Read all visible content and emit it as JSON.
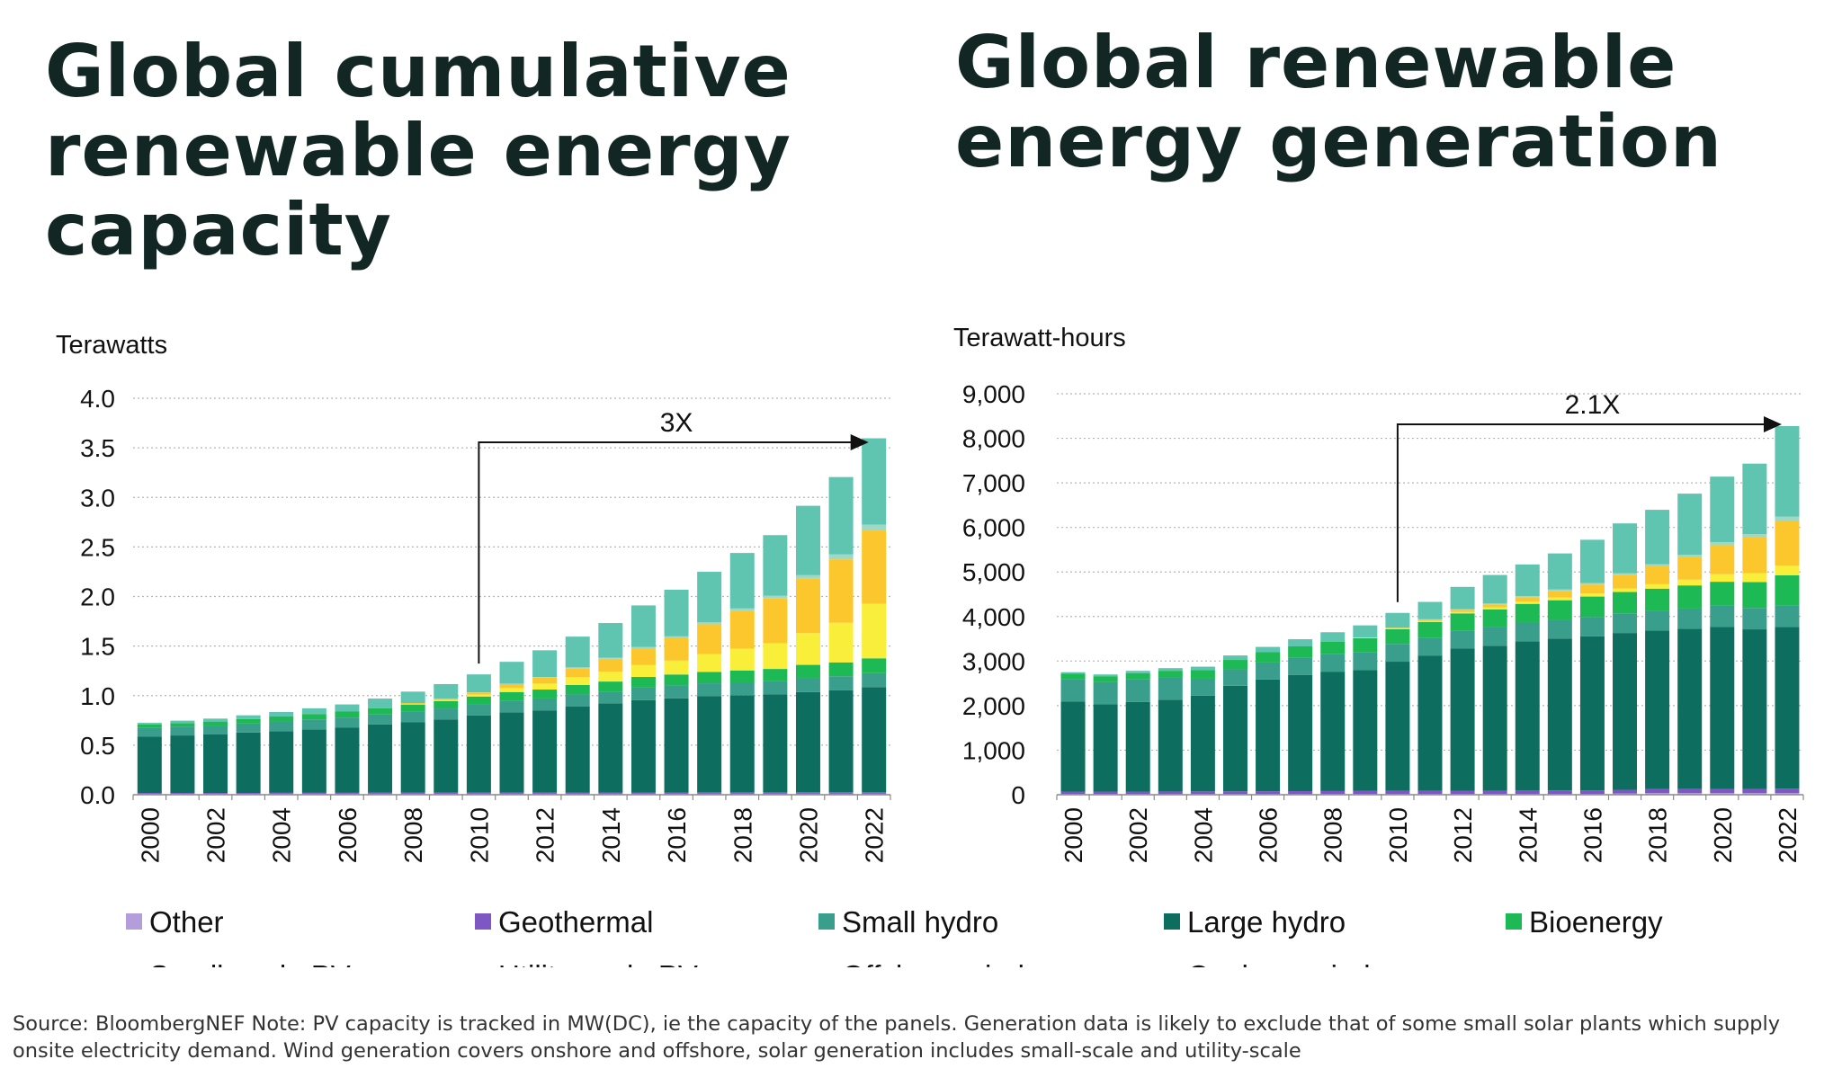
{
  "titles": {
    "left": "Global cumulative renewable energy capacity",
    "right": "Global renewable energy generation"
  },
  "source": "Source: BloombergNEF Note: PV capacity is tracked in MW(DC), ie the capacity of the panels. Generation data is likely to exclude that of some small solar plants which supply onsite electricity demand. Wind generation covers onshore and offshore, solar generation includes small-scale and utility-scale",
  "legend": [
    {
      "name": "Other",
      "color": "#b39ddb"
    },
    {
      "name": "Geothermal",
      "color": "#7e57c2"
    },
    {
      "name": "Small hydro",
      "color": "#3a9e8c"
    },
    {
      "name": "Large hydro",
      "color": "#0d6e5f"
    },
    {
      "name": "Bioenergy",
      "color": "#1db954"
    },
    {
      "name": "Small-scale PV",
      "color": "#f9ef3b"
    },
    {
      "name": "Utility-scale PV",
      "color": "#fcc72c"
    },
    {
      "name": "Offshore wind",
      "color": "#9ed9c8"
    },
    {
      "name": "Onshore wind",
      "color": "#5fc4b0"
    }
  ],
  "chart_data": [
    {
      "type": "bar",
      "stacked": true,
      "ylabel": "Terawatts",
      "ylim": [
        0,
        4
      ],
      "yticks": [
        "0.0",
        "0.5",
        "1.0",
        "1.5",
        "2.0",
        "2.5",
        "3.0",
        "3.5",
        "4.0"
      ],
      "categories": [
        "2000",
        "2001",
        "2002",
        "2003",
        "2004",
        "2005",
        "2006",
        "2007",
        "2008",
        "2009",
        "2010",
        "2011",
        "2012",
        "2013",
        "2014",
        "2015",
        "2016",
        "2017",
        "2018",
        "2019",
        "2020",
        "2021",
        "2022"
      ],
      "x_tick_labels": [
        "2000",
        "2002",
        "2004",
        "2006",
        "2008",
        "2010",
        "2012",
        "2014",
        "2016",
        "2018",
        "2020",
        "2022"
      ],
      "annotation": {
        "text": "3X",
        "from": "2010",
        "to": "2022"
      },
      "series": [
        {
          "name": "Other",
          "values": [
            0.01,
            0.01,
            0.01,
            0.01,
            0.01,
            0.01,
            0.01,
            0.01,
            0.01,
            0.01,
            0.01,
            0.01,
            0.01,
            0.01,
            0.01,
            0.01,
            0.01,
            0.01,
            0.01,
            0.01,
            0.01,
            0.01,
            0.01
          ]
        },
        {
          "name": "Geothermal",
          "values": [
            0.008,
            0.008,
            0.008,
            0.008,
            0.009,
            0.009,
            0.009,
            0.01,
            0.01,
            0.01,
            0.011,
            0.011,
            0.011,
            0.012,
            0.012,
            0.013,
            0.013,
            0.014,
            0.014,
            0.014,
            0.015,
            0.015,
            0.016
          ]
        },
        {
          "name": "Large hydro",
          "values": [
            0.57,
            0.58,
            0.59,
            0.61,
            0.62,
            0.64,
            0.66,
            0.69,
            0.71,
            0.74,
            0.78,
            0.81,
            0.83,
            0.87,
            0.9,
            0.93,
            0.95,
            0.97,
            0.98,
            0.99,
            1.01,
            1.03,
            1.06
          ]
        },
        {
          "name": "Small hydro",
          "values": [
            0.09,
            0.09,
            0.09,
            0.09,
            0.1,
            0.1,
            0.1,
            0.1,
            0.11,
            0.11,
            0.11,
            0.12,
            0.12,
            0.12,
            0.12,
            0.13,
            0.13,
            0.13,
            0.13,
            0.13,
            0.14,
            0.14,
            0.14
          ]
        },
        {
          "name": "Bioenergy",
          "values": [
            0.03,
            0.035,
            0.04,
            0.045,
            0.05,
            0.055,
            0.06,
            0.065,
            0.07,
            0.075,
            0.08,
            0.085,
            0.09,
            0.095,
            0.1,
            0.105,
            0.11,
            0.115,
            0.12,
            0.125,
            0.135,
            0.14,
            0.15
          ]
        },
        {
          "name": "Small-scale PV",
          "values": [
            0,
            0,
            0,
            0,
            0,
            0,
            0,
            0,
            0.005,
            0.01,
            0.02,
            0.04,
            0.06,
            0.08,
            0.1,
            0.12,
            0.14,
            0.18,
            0.22,
            0.26,
            0.32,
            0.4,
            0.55
          ]
        },
        {
          "name": "Utility-scale PV",
          "values": [
            0,
            0,
            0,
            0,
            0,
            0,
            0,
            0.005,
            0.01,
            0.015,
            0.02,
            0.04,
            0.06,
            0.09,
            0.13,
            0.17,
            0.23,
            0.3,
            0.38,
            0.45,
            0.55,
            0.64,
            0.74
          ]
        },
        {
          "name": "Offshore wind",
          "values": [
            0,
            0,
            0,
            0,
            0,
            0,
            0,
            0,
            0,
            0,
            0.003,
            0.005,
            0.006,
            0.008,
            0.01,
            0.012,
            0.015,
            0.02,
            0.025,
            0.03,
            0.035,
            0.05,
            0.06
          ]
        },
        {
          "name": "Onshore wind",
          "values": [
            0.017,
            0.024,
            0.03,
            0.038,
            0.046,
            0.058,
            0.072,
            0.09,
            0.115,
            0.146,
            0.18,
            0.22,
            0.27,
            0.31,
            0.35,
            0.42,
            0.47,
            0.51,
            0.56,
            0.61,
            0.7,
            0.78,
            0.87
          ]
        }
      ]
    },
    {
      "type": "bar",
      "stacked": true,
      "ylabel": "Terawatt-hours",
      "ylim": [
        0,
        9000
      ],
      "yticks": [
        "0",
        "1,000",
        "2,000",
        "3,000",
        "4,000",
        "5,000",
        "6,000",
        "7,000",
        "8,000",
        "9,000"
      ],
      "categories": [
        "2000",
        "2001",
        "2002",
        "2003",
        "2004",
        "2005",
        "2006",
        "2007",
        "2008",
        "2009",
        "2010",
        "2011",
        "2012",
        "2013",
        "2014",
        "2015",
        "2016",
        "2017",
        "2018",
        "2019",
        "2020",
        "2021",
        "2022"
      ],
      "x_tick_labels": [
        "2000",
        "2002",
        "2004",
        "2006",
        "2008",
        "2010",
        "2012",
        "2014",
        "2016",
        "2018",
        "2020",
        "2022"
      ],
      "annotation": {
        "text": "2.1X",
        "from": "2010",
        "to": "2022"
      },
      "series": [
        {
          "name": "Other",
          "values": [
            20,
            20,
            20,
            20,
            20,
            20,
            20,
            20,
            20,
            20,
            20,
            20,
            20,
            20,
            20,
            20,
            20,
            30,
            40,
            40,
            40,
            40,
            40
          ]
        },
        {
          "name": "Geothermal",
          "values": [
            50,
            50,
            50,
            52,
            54,
            56,
            58,
            60,
            62,
            64,
            66,
            68,
            70,
            72,
            74,
            76,
            78,
            80,
            85,
            88,
            90,
            92,
            95
          ]
        },
        {
          "name": "Large hydro",
          "values": [
            2020,
            1960,
            2010,
            2060,
            2150,
            2370,
            2510,
            2610,
            2680,
            2710,
            2900,
            3030,
            3190,
            3250,
            3350,
            3410,
            3460,
            3520,
            3560,
            3600,
            3640,
            3580,
            3630
          ]
        },
        {
          "name": "Small hydro",
          "values": [
            510,
            500,
            510,
            500,
            380,
            370,
            380,
            380,
            390,
            400,
            400,
            400,
            410,
            420,
            420,
            420,
            430,
            440,
            440,
            450,
            470,
            480,
            480
          ]
        },
        {
          "name": "Bioenergy",
          "values": [
            120,
            130,
            140,
            150,
            190,
            210,
            230,
            260,
            290,
            320,
            330,
            360,
            380,
            400,
            420,
            440,
            460,
            480,
            500,
            520,
            540,
            580,
            680
          ]
        },
        {
          "name": "Small-scale PV",
          "values": [
            0,
            0,
            0,
            0,
            0,
            0,
            0,
            0,
            2,
            5,
            10,
            20,
            30,
            40,
            50,
            60,
            70,
            80,
            100,
            130,
            170,
            200,
            220
          ]
        },
        {
          "name": "Utility-scale PV",
          "values": [
            0,
            0,
            0,
            0,
            0,
            0,
            0,
            0,
            3,
            10,
            20,
            30,
            50,
            70,
            100,
            150,
            200,
            300,
            400,
            500,
            650,
            800,
            1000
          ]
        },
        {
          "name": "Offshore wind",
          "values": [
            0,
            0,
            0,
            0,
            0,
            0,
            0,
            0,
            0,
            2,
            5,
            10,
            15,
            20,
            25,
            30,
            35,
            40,
            50,
            60,
            70,
            80,
            100
          ]
        },
        {
          "name": "Onshore wind",
          "values": [
            30,
            40,
            50,
            60,
            80,
            100,
            120,
            160,
            200,
            270,
            330,
            390,
            500,
            640,
            710,
            810,
            970,
            1120,
            1220,
            1370,
            1470,
            1580,
            2030
          ]
        }
      ]
    }
  ]
}
